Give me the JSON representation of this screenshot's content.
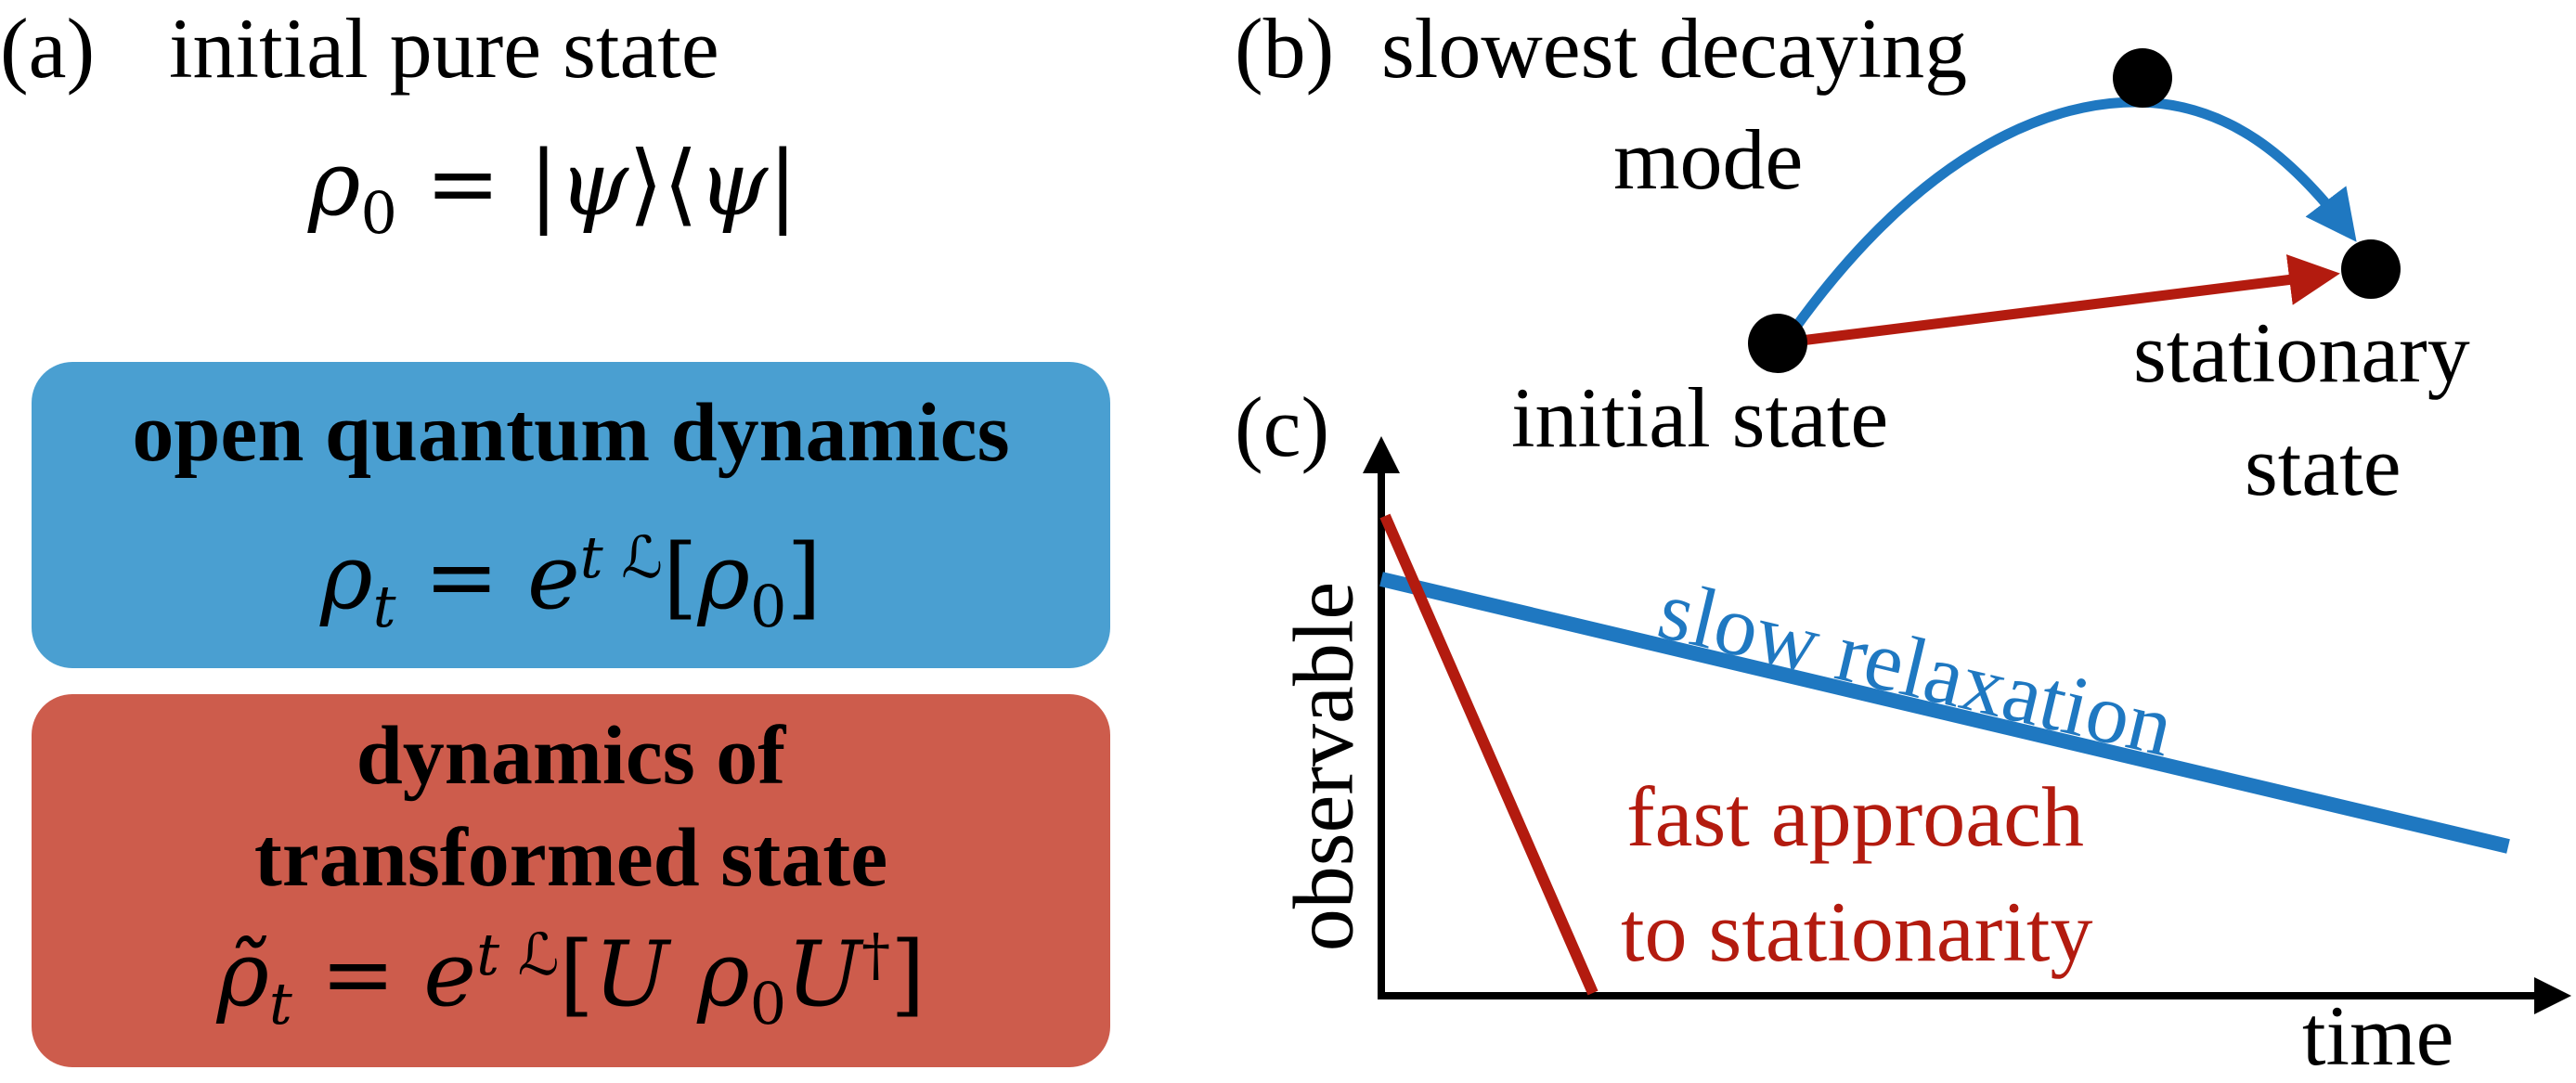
{
  "panel_a": {
    "letter": "(a)",
    "title": "initial pure state",
    "equation": "ρ₀ = |ψ⟩⟨ψ|",
    "open_box": {
      "title": "open quantum dynamics",
      "equation": "ρₜ = e^{t ℒ}[ρ₀]",
      "color": "#4a9fd1"
    },
    "transformed_box": {
      "title_line1": "dynamics of",
      "title_line2": "transformed state",
      "equation": "ρ̃ₜ = e^{t ℒ}[U ρ₀ U†]",
      "color": "#cd5c4c"
    }
  },
  "panel_b": {
    "letter": "(b)",
    "slow_mode_line1": "slowest decaying",
    "slow_mode_line2": "mode",
    "initial_state": "initial state",
    "stationary_line1": "stationary",
    "stationary_line2": "state"
  },
  "panel_c": {
    "letter": "(c)",
    "y_axis": "observable",
    "x_axis": "time",
    "slow_label": "slow relaxation",
    "fast_label_line1": "fast approach",
    "fast_label_line2": "to stationarity"
  },
  "colors": {
    "blue": "#1f78c1",
    "red": "#b31b0f"
  }
}
